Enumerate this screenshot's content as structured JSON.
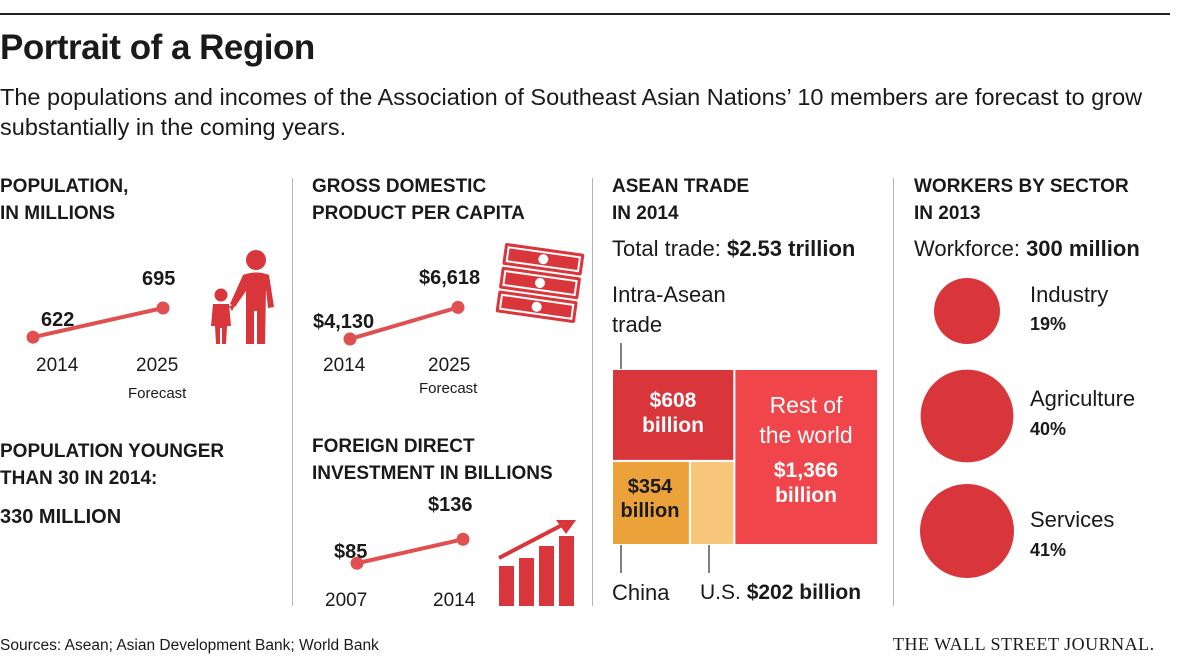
{
  "title": "Portrait of a Region",
  "subtitle": "The populations and incomes of the Association of Southeast Asian Nations’ 10 members are forecast to grow substantially in the coming years.",
  "population": {
    "heading_line1": "POPULATION,",
    "heading_line2": "IN MILLIONS",
    "v1_label": "622",
    "v2_label": "695",
    "x1": "2014",
    "x2": "2025",
    "forecast": "Forecast",
    "icon": "family-icon"
  },
  "young": {
    "line1": "POPULATION YOUNGER",
    "line2": "THAN 30 IN 2014:",
    "value": "330 MILLION"
  },
  "gdp": {
    "heading_line1": "GROSS DOMESTIC",
    "heading_line2": "PRODUCT PER CAPITA",
    "v1_label": "$4,130",
    "v2_label": "$6,618",
    "x1": "2014",
    "x2": "2025",
    "forecast": "Forecast",
    "icon": "money-icon"
  },
  "fdi": {
    "heading_line1": "FOREIGN DIRECT",
    "heading_line2": "INVESTMENT IN BILLIONS",
    "v1_label": "$85",
    "v2_label": "$136",
    "x1": "2007",
    "x2": "2014",
    "icon": "rising-bar-chart-icon"
  },
  "trade": {
    "heading_line1": "ASEAN TRADE",
    "heading_line2": "IN 2014",
    "total_prefix": "Total trade: ",
    "total_value": "$2.53 trillion",
    "intra_line1": "Intra-Asean",
    "intra_line2": "trade",
    "intra_v1": "$608",
    "intra_v2": "billion",
    "china_v1": "$354",
    "china_v2": "billion",
    "rest_line1": "Rest of",
    "rest_line2": "the world",
    "rest_v1": "$1,366",
    "rest_v2": "billion",
    "china_label": "China",
    "us_label": "U.S. ",
    "us_value": "$202 billion"
  },
  "workers": {
    "heading_line1": "WORKERS BY SECTOR",
    "heading_line2": "IN 2013",
    "total_prefix": "Workforce: ",
    "total_value": "300 million",
    "sectors": [
      {
        "name": "Industry",
        "pct_label": "19%"
      },
      {
        "name": "Agriculture",
        "pct_label": "40%"
      },
      {
        "name": "Services",
        "pct_label": "41%"
      }
    ]
  },
  "footer": {
    "sources": "Sources: Asean; Asian Development Bank; World Bank",
    "credit": "THE WALL STREET JOURNAL."
  },
  "colors": {
    "red": "#d9363c",
    "bright_red": "#f0464b",
    "orange": "#eca23a",
    "light_orange": "#f8c77c",
    "line_red": "#e05050"
  },
  "chart_data": [
    {
      "type": "line",
      "title": "POPULATION, IN MILLIONS",
      "x": [
        "2014",
        "2025"
      ],
      "values": [
        622,
        695
      ]
    },
    {
      "type": "line",
      "title": "GROSS DOMESTIC PRODUCT PER CAPITA",
      "x": [
        "2014",
        "2025"
      ],
      "values": [
        4130,
        6618
      ]
    },
    {
      "type": "line",
      "title": "FOREIGN DIRECT INVESTMENT IN BILLIONS",
      "x": [
        "2007",
        "2014"
      ],
      "values": [
        85,
        136
      ]
    },
    {
      "type": "table",
      "title": "ASEAN TRADE IN 2014",
      "categories": [
        "Intra-Asean trade",
        "China",
        "U.S.",
        "Rest of the world"
      ],
      "values": [
        608,
        354,
        202,
        1366
      ],
      "total": 2530
    },
    {
      "type": "pie",
      "title": "WORKERS BY SECTOR IN 2013",
      "categories": [
        "Industry",
        "Agriculture",
        "Services"
      ],
      "values": [
        19,
        40,
        41
      ],
      "total": 300
    }
  ]
}
